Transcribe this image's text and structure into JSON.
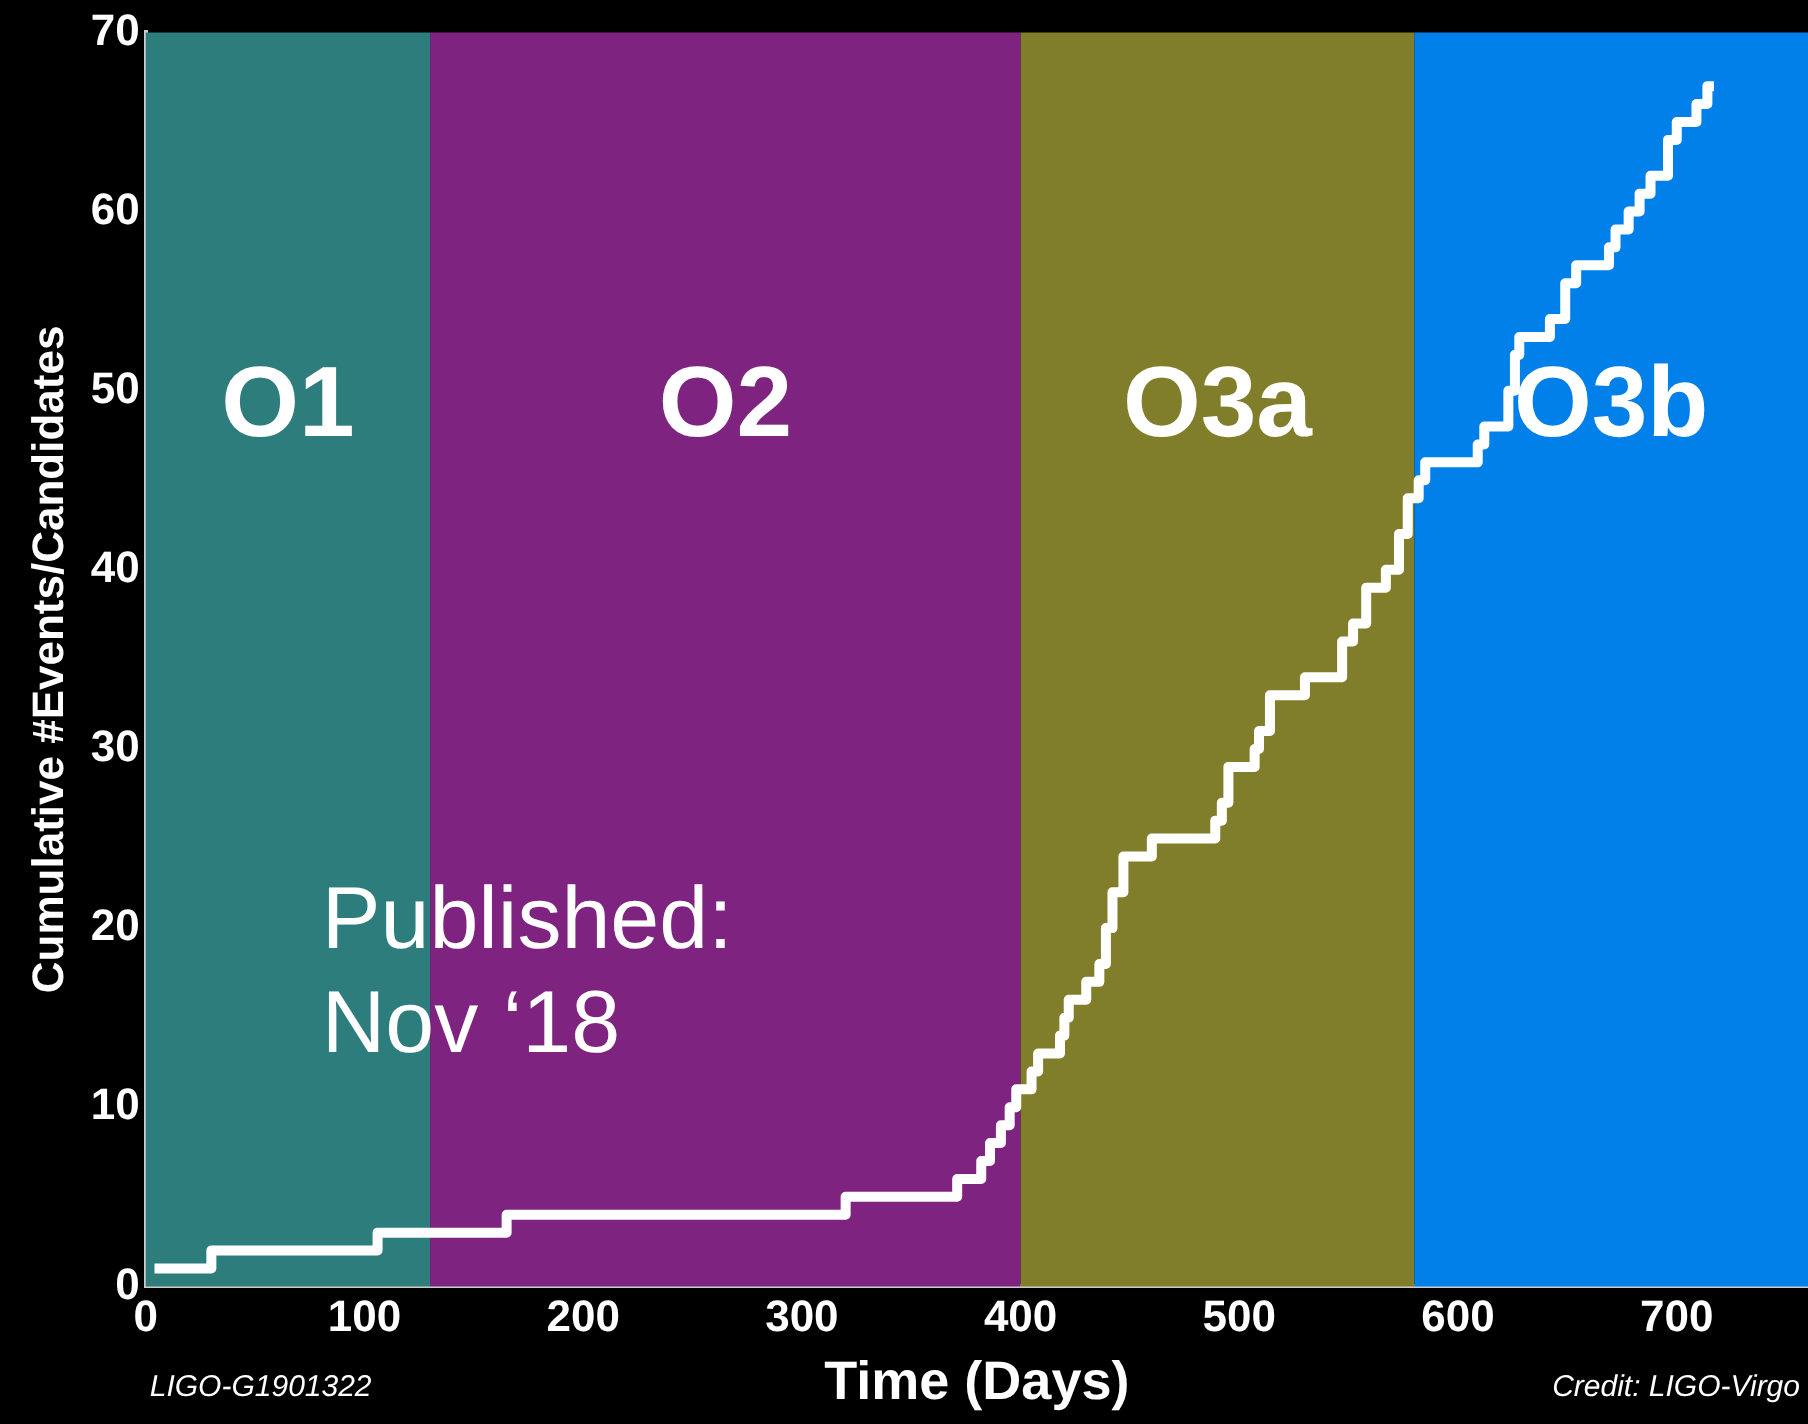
{
  "chart_data": {
    "type": "step",
    "xlabel": "Time (Days)",
    "ylabel": "Cumulative #Events/Candidates",
    "xlim": [
      0,
      760
    ],
    "ylim": [
      0,
      70
    ],
    "xticks": [
      0,
      100,
      200,
      300,
      400,
      500,
      600,
      700
    ],
    "yticks": [
      0,
      10,
      20,
      30,
      40,
      50,
      60,
      70
    ],
    "grid": false,
    "legend": false,
    "series": [
      {
        "color": "#ffffff",
        "x": [
          4,
          30,
          106,
          165,
          320,
          371,
          382,
          386,
          391,
          395,
          398,
          405,
          408,
          418,
          420,
          422,
          430,
          436,
          439,
          442,
          447,
          460,
          489,
          492,
          495,
          507,
          509,
          514,
          530,
          547,
          552,
          558,
          567,
          573,
          577,
          582,
          585,
          609,
          612,
          623,
          626,
          628,
          642,
          649,
          654,
          669,
          672,
          678,
          683,
          688,
          696,
          700,
          709,
          714,
          717
        ],
        "values": [
          1,
          2,
          3,
          4,
          5,
          6,
          7,
          8,
          9,
          10,
          11,
          12,
          13,
          14,
          15,
          16,
          17,
          18,
          20,
          22,
          24,
          25,
          26,
          27,
          29,
          30,
          31,
          33,
          34,
          36,
          37,
          39,
          40,
          42,
          44,
          45,
          46,
          47,
          48,
          50,
          52,
          53,
          54,
          56,
          57,
          58,
          59,
          60,
          61,
          62,
          64,
          65,
          66,
          67,
          67
        ]
      }
    ],
    "bands": [
      {
        "axis": "x",
        "from": 0,
        "to": 130,
        "label": "O1",
        "color": "#2e7d7d"
      },
      {
        "axis": "x",
        "from": 130,
        "to": 400,
        "label": "O2",
        "color": "#7e2480"
      },
      {
        "axis": "x",
        "from": 400,
        "to": 580,
        "label": "O3a",
        "color": "#807d2b"
      },
      {
        "axis": "x",
        "from": 580,
        "to": 760,
        "label": "O3b",
        "color": "#0080e8"
      }
    ],
    "annotations": [
      "Published:\nNov ‘18",
      "LIGO-G1901322",
      "Credit: LIGO-Virgo"
    ]
  }
}
